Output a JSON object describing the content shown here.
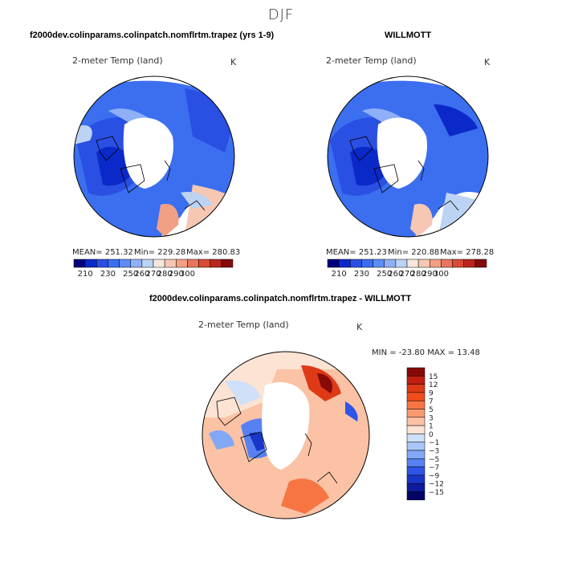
{
  "figure": {
    "season": "DJF",
    "panel_left_title": "f2000dev.colinparams.colinpatch.nomflrtm.trapez (yrs 1-9)",
    "panel_right_title": "WILLMOTT",
    "panel_diff_title": "f2000dev.colinparams.colinpatch.nomflrtm.trapez - WILLMOTT"
  },
  "chart_data": [
    {
      "type": "heatmap",
      "name": "model",
      "variable": "2-meter Temp (land)",
      "units": "K",
      "stats": {
        "mean": "MEAN= 251.32",
        "min": "Min= 229.28",
        "max": "Max= 280.83"
      },
      "colorbar_ticks": [
        "210",
        "230",
        "250",
        "260",
        "270",
        "280",
        "290",
        "300"
      ],
      "colorbar_colors": [
        "#00007e",
        "#0b29c8",
        "#2a4fe3",
        "#3b6ff0",
        "#5f8cf5",
        "#8fb0f6",
        "#bcd3f3",
        "#f5e7dc",
        "#f6c7b3",
        "#f2a083",
        "#e9765c",
        "#d94b34",
        "#b9261c",
        "#830c0c"
      ]
    },
    {
      "type": "heatmap",
      "name": "observations",
      "variable": "2-meter Temp (land)",
      "units": "K",
      "stats": {
        "mean": "MEAN= 251.23",
        "min": "Min= 220.88",
        "max": "Max= 278.28"
      },
      "colorbar_ticks": [
        "210",
        "230",
        "250",
        "260",
        "270",
        "280",
        "290",
        "300"
      ],
      "colorbar_colors": [
        "#00007e",
        "#0b29c8",
        "#2a4fe3",
        "#3b6ff0",
        "#5f8cf5",
        "#8fb0f6",
        "#bcd3f3",
        "#f5e7dc",
        "#f6c7b3",
        "#f2a083",
        "#e9765c",
        "#d94b34",
        "#b9261c",
        "#830c0c"
      ]
    },
    {
      "type": "heatmap",
      "name": "difference",
      "variable": "2-meter Temp (land)",
      "units": "K",
      "stats": {
        "minmax": "MIN = -23.80 MAX =  13.48"
      },
      "colorbar_labels": [
        "15",
        "12",
        "9",
        "7",
        "5",
        "3",
        "1",
        "0",
        "−1",
        "−3",
        "−5",
        "−7",
        "−9",
        "−12",
        "−15"
      ],
      "colorbar_colors": [
        "#870a08",
        "#c01e10",
        "#de3a16",
        "#f04d1c",
        "#f77543",
        "#fa9a71",
        "#fbc2a5",
        "#fde3d3",
        "#cfe0f8",
        "#a9c6f7",
        "#82a7f5",
        "#5781f2",
        "#2f55e8",
        "#1a36c8",
        "#0e1b9c",
        "#040466"
      ]
    }
  ]
}
